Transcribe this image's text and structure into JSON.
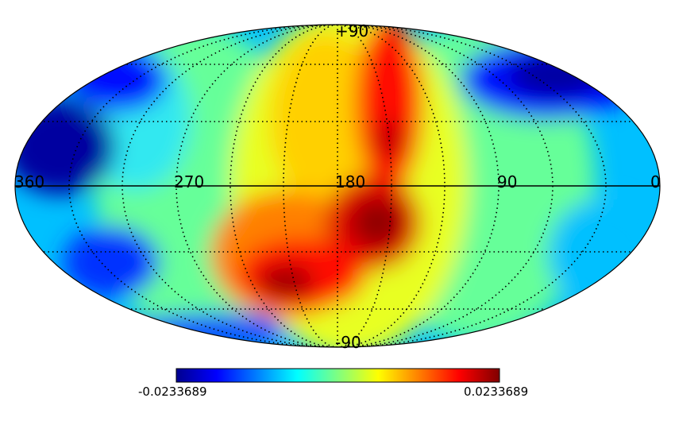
{
  "projection": "mollweide",
  "colormap": "jet",
  "graticule": {
    "parallels_deg": [
      -60,
      -30,
      30,
      60
    ],
    "meridians_deg": [
      0,
      30,
      60,
      90,
      120,
      150,
      180,
      210,
      240,
      270,
      300,
      330,
      360
    ],
    "style": "dotted",
    "equator_and_central_meridian": "solid"
  },
  "longitude_labels": [
    "360",
    "270",
    "180",
    "90",
    "0"
  ],
  "latitude_labels": {
    "top": "+90",
    "bottom": "-90"
  },
  "colorbar": {
    "min_label": "-0.0233689",
    "max_label": "0.0233689",
    "min": -0.0233689,
    "max": 0.0233689
  },
  "colors": {
    "low": "#00008f",
    "mid_low": "#00ffff",
    "mid": "#ffff00",
    "high": "#800000"
  }
}
